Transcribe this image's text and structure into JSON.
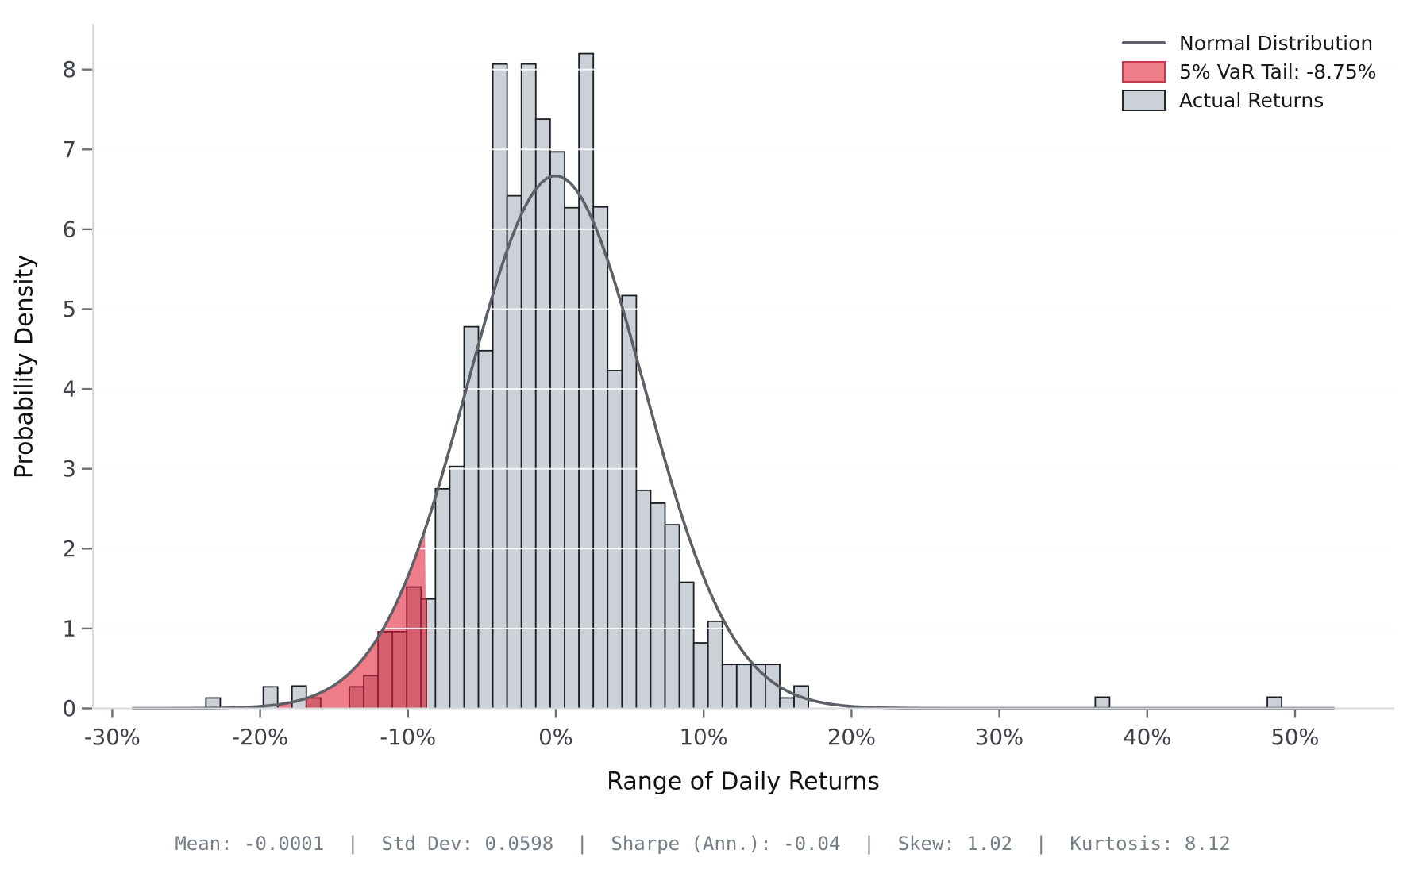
{
  "chart_data": {
    "type": "histogram",
    "title": "",
    "xlabel": "Range of Daily Returns",
    "ylabel": "Probability Density",
    "x_axis": {
      "tick_values_pct": [
        -30,
        -20,
        -10,
        0,
        10,
        20,
        30,
        40,
        50
      ],
      "tick_labels": [
        "-30%",
        "-20%",
        "-10%",
        "0%",
        "10%",
        "20%",
        "30%",
        "40%",
        "50%"
      ],
      "range_pct": [
        -31.3,
        56.7
      ]
    },
    "y_axis": {
      "tick_values": [
        0,
        1,
        2,
        3,
        4,
        5,
        6,
        7,
        8
      ],
      "tick_labels": [
        "0",
        "1",
        "2",
        "3",
        "4",
        "5",
        "6",
        "7",
        "8"
      ],
      "range": [
        0,
        8.57
      ]
    },
    "grid": "horizontal",
    "bin_width_pct": 0.97,
    "bars": [
      {
        "x": -23.18,
        "h": 0.13,
        "kind": "gray"
      },
      {
        "x": -19.3,
        "h": 0.27,
        "kind": "gray"
      },
      {
        "x": -17.36,
        "h": 0.28,
        "kind": "gray"
      },
      {
        "x": -16.39,
        "h": 0.13,
        "kind": "tail"
      },
      {
        "x": -13.48,
        "h": 0.27,
        "kind": "tail"
      },
      {
        "x": -12.51,
        "h": 0.41,
        "kind": "tail"
      },
      {
        "x": -11.54,
        "h": 0.96,
        "kind": "tail"
      },
      {
        "x": -10.57,
        "h": 0.96,
        "kind": "tail"
      },
      {
        "x": -9.6,
        "h": 1.52,
        "kind": "tail"
      },
      {
        "x": -8.63,
        "h": 1.37,
        "kind": "split"
      },
      {
        "x": -7.66,
        "h": 2.75,
        "kind": "gray"
      },
      {
        "x": -6.69,
        "h": 3.03,
        "kind": "gray"
      },
      {
        "x": -5.72,
        "h": 4.78,
        "kind": "gray"
      },
      {
        "x": -4.75,
        "h": 4.48,
        "kind": "gray"
      },
      {
        "x": -3.78,
        "h": 8.07,
        "kind": "gray"
      },
      {
        "x": -2.81,
        "h": 6.42,
        "kind": "gray"
      },
      {
        "x": -1.84,
        "h": 8.07,
        "kind": "gray"
      },
      {
        "x": -0.87,
        "h": 7.38,
        "kind": "gray"
      },
      {
        "x": 0.11,
        "h": 6.97,
        "kind": "gray"
      },
      {
        "x": 1.08,
        "h": 6.27,
        "kind": "gray"
      },
      {
        "x": 2.05,
        "h": 8.2,
        "kind": "gray"
      },
      {
        "x": 3.02,
        "h": 6.28,
        "kind": "gray"
      },
      {
        "x": 3.99,
        "h": 4.23,
        "kind": "gray"
      },
      {
        "x": 4.96,
        "h": 5.17,
        "kind": "gray"
      },
      {
        "x": 5.93,
        "h": 2.73,
        "kind": "gray"
      },
      {
        "x": 6.9,
        "h": 2.57,
        "kind": "gray"
      },
      {
        "x": 7.87,
        "h": 2.3,
        "kind": "gray"
      },
      {
        "x": 8.84,
        "h": 1.58,
        "kind": "gray"
      },
      {
        "x": 9.81,
        "h": 0.82,
        "kind": "gray"
      },
      {
        "x": 10.78,
        "h": 1.09,
        "kind": "gray"
      },
      {
        "x": 11.75,
        "h": 0.55,
        "kind": "gray"
      },
      {
        "x": 12.72,
        "h": 0.55,
        "kind": "gray"
      },
      {
        "x": 13.69,
        "h": 0.55,
        "kind": "gray"
      },
      {
        "x": 14.66,
        "h": 0.55,
        "kind": "gray"
      },
      {
        "x": 15.63,
        "h": 0.13,
        "kind": "gray"
      },
      {
        "x": 16.6,
        "h": 0.28,
        "kind": "gray"
      },
      {
        "x": 36.97,
        "h": 0.14,
        "kind": "gray"
      },
      {
        "x": 48.61,
        "h": 0.14,
        "kind": "gray"
      }
    ],
    "var_threshold_pct": -8.75,
    "normal_curve": {
      "mean": -0.0001,
      "std": 0.0598,
      "peak_density": 6.67,
      "x_range_pct": [
        -28.6,
        52.8
      ]
    },
    "legend": [
      {
        "label": "Normal Distribution",
        "type": "line"
      },
      {
        "label": "5% VaR Tail: -8.75%",
        "type": "patch-red"
      },
      {
        "label": "Actual Returns",
        "type": "patch-gray"
      }
    ],
    "colors": {
      "bar_fill": "#ccd1d8",
      "bar_edge": "#1b1e23",
      "tail_bar_fill": "#d65f70",
      "tail_bar_edge": "#8c2133",
      "tail_area_fill": "#ee7d89",
      "curve": "#5d6167",
      "grid_base": "#ededef",
      "grid_over_bars": "rgba(255,255,255,0.85)",
      "spine": "#d8dadd",
      "tick_mark": "#6b7077",
      "tick_label": "#3d4248",
      "legend_red_edge": "#c43a4e",
      "legend_gray_edge": "#24272c"
    }
  },
  "footer": {
    "stats": "Mean: -0.0001  |  Std Dev: 0.0598  |  Sharpe (Ann.): -0.04  |  Skew: 1.02  |  Kurtosis: 8.12"
  }
}
